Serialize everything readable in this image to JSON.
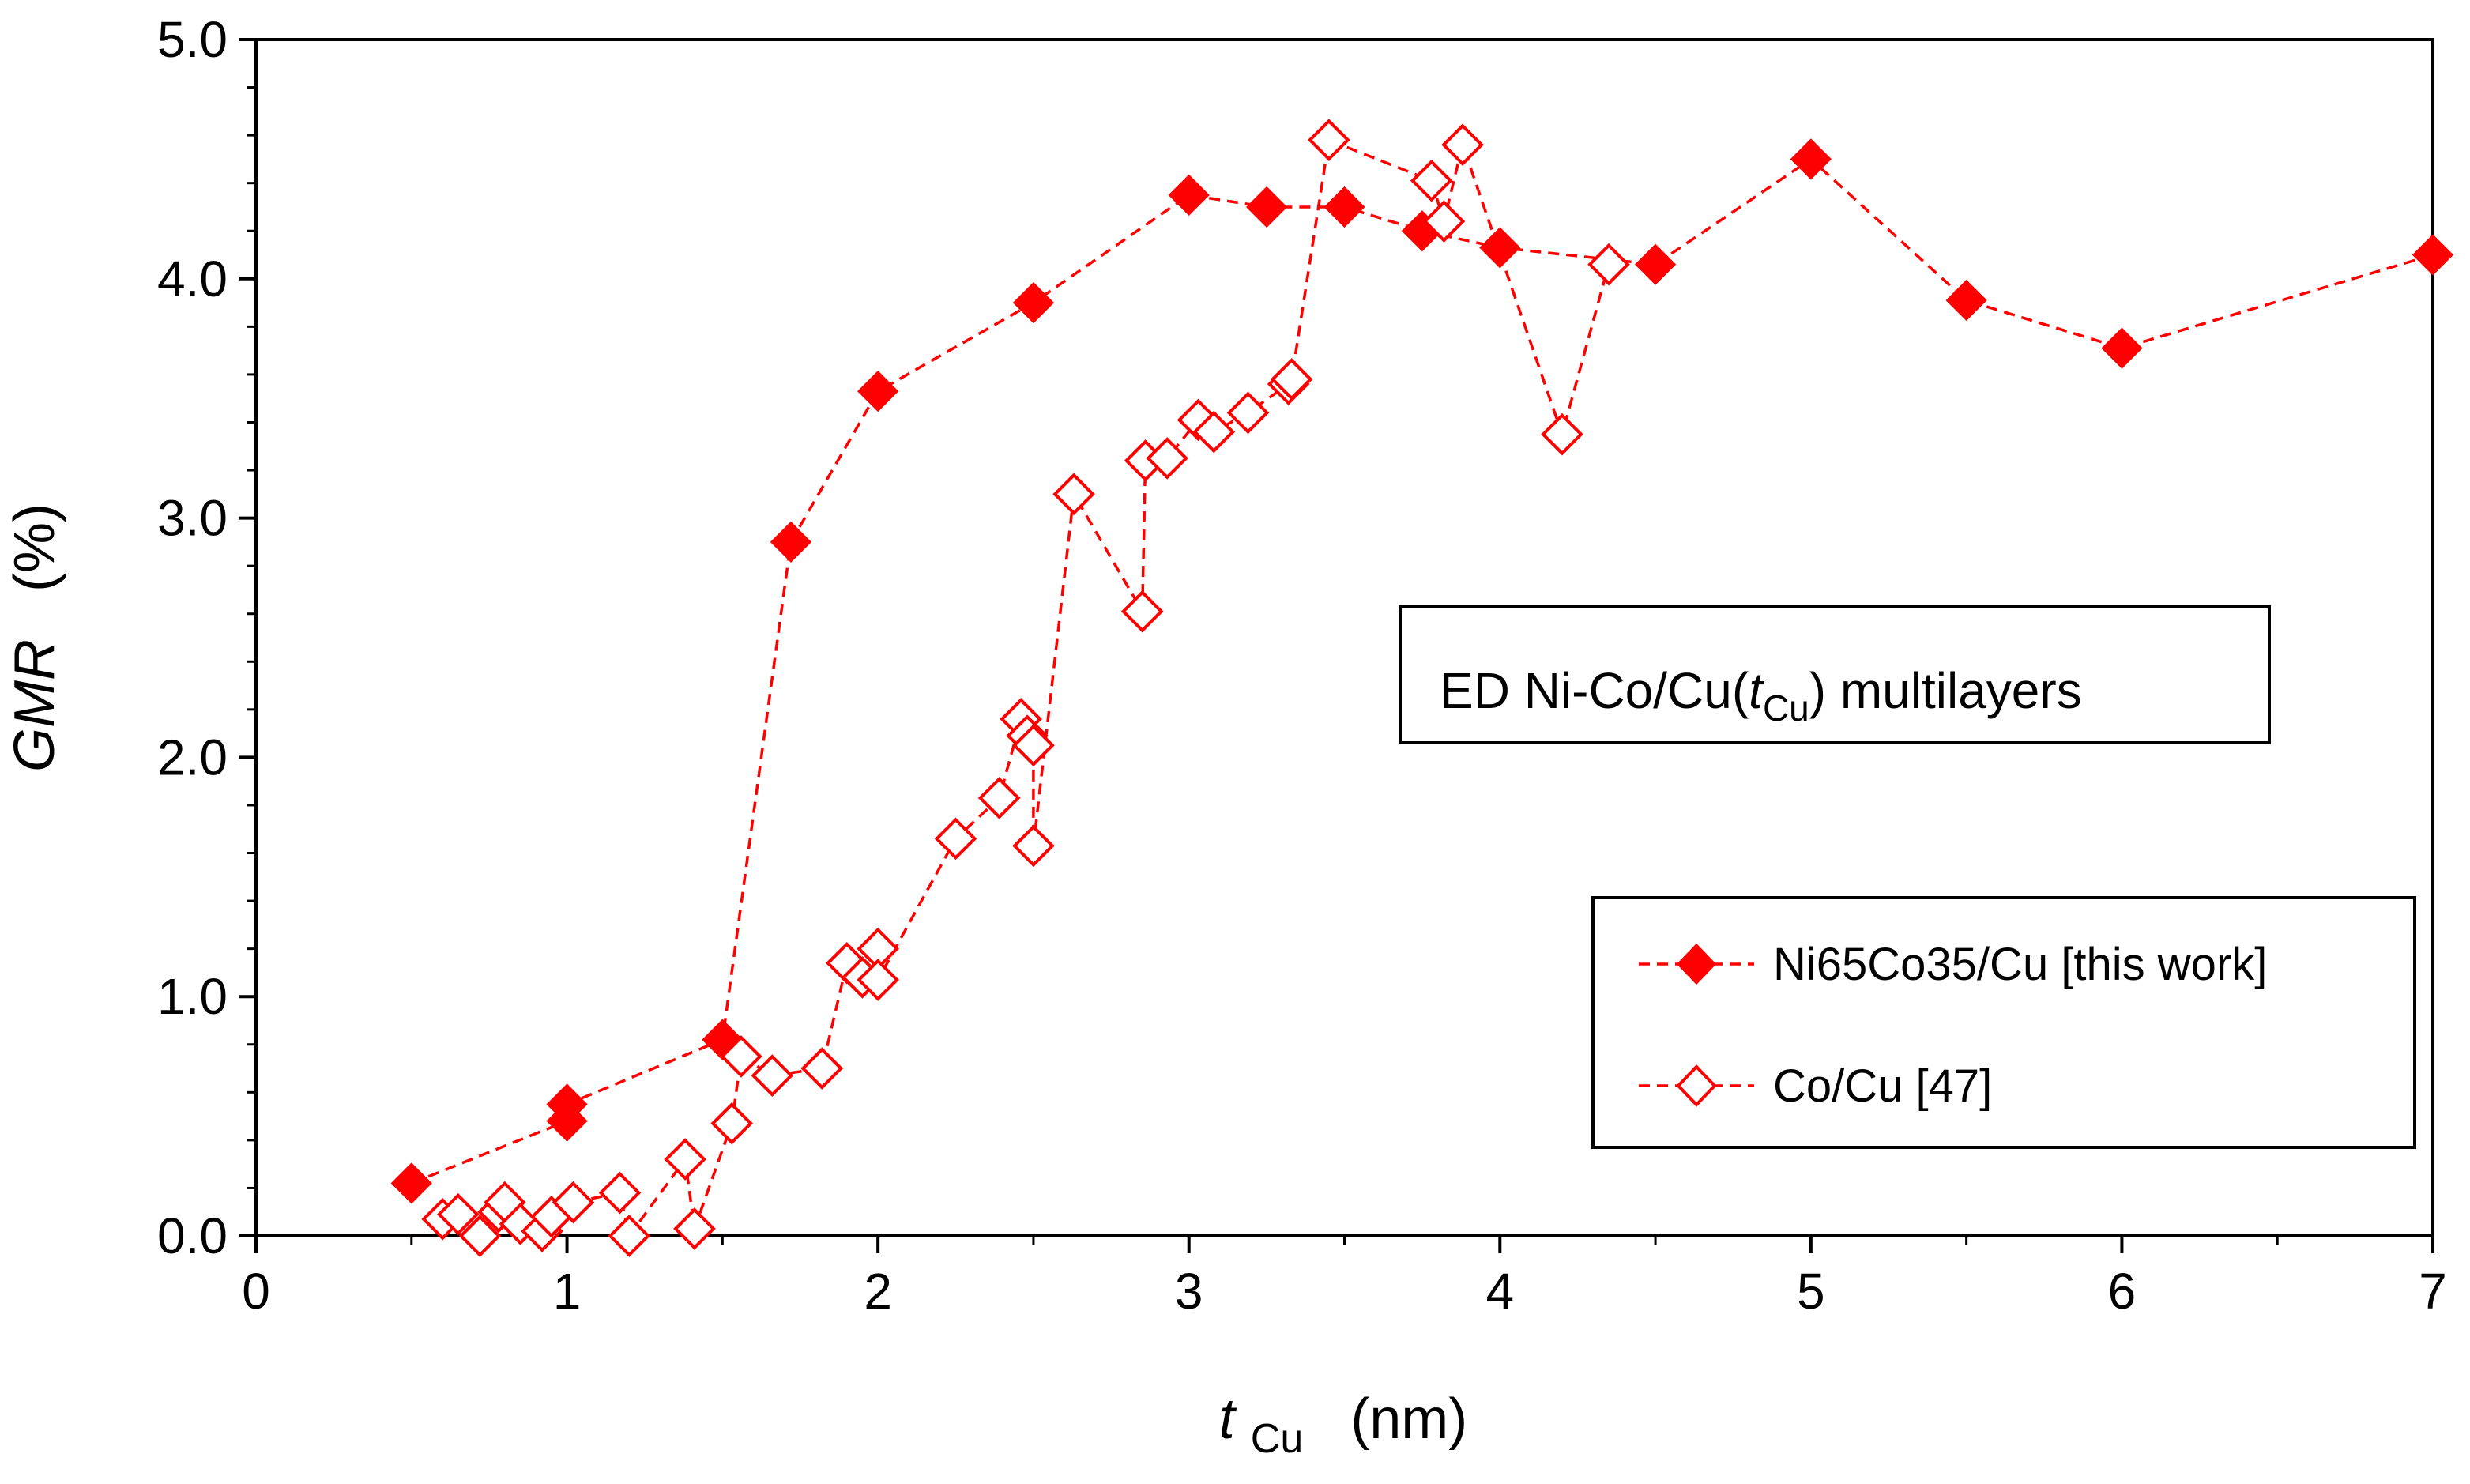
{
  "chart_data": {
    "type": "scatter",
    "title": "",
    "xlabel": {
      "main": "t",
      "sub": "Cu",
      "unit": "(nm)"
    },
    "ylabel": {
      "main": "GMR",
      "unit": "(%)"
    },
    "xlim": [
      0,
      7
    ],
    "ylim": [
      0,
      5
    ],
    "x_ticks": [
      "0",
      "1",
      "2",
      "3",
      "4",
      "5",
      "6",
      "7"
    ],
    "y_ticks": [
      "0.0",
      "1.0",
      "2.0",
      "3.0",
      "4.0",
      "5.0"
    ],
    "grid": false,
    "annotation": {
      "prefix": "ED Ni-Co/Cu(",
      "italic": "t",
      "sub": "Cu",
      "suffix": ") multilayers"
    },
    "legend": {
      "position": "lower-right"
    },
    "series": [
      {
        "name": "Ni65Co35/Cu [this work]",
        "marker": "filled-diamond",
        "color": "#ff0000",
        "x": [
          0.5,
          1.0,
          1.0,
          1.5,
          1.72,
          2.0,
          2.5,
          3.0,
          3.25,
          3.5,
          3.75,
          4.0,
          4.5,
          5.0,
          5.5,
          6.0,
          7.0
        ],
        "y": [
          0.22,
          0.48,
          0.55,
          0.82,
          2.9,
          3.53,
          3.9,
          4.35,
          4.3,
          4.3,
          4.2,
          4.13,
          4.06,
          4.5,
          3.91,
          3.71,
          4.1
        ]
      },
      {
        "name": "Co/Cu [47]",
        "marker": "open-diamond",
        "color": "#ff0000",
        "x": [
          0.6,
          0.65,
          0.72,
          0.78,
          0.8,
          0.85,
          0.92,
          0.95,
          1.02,
          1.17,
          1.2,
          1.38,
          1.41,
          1.53,
          1.56,
          1.66,
          1.82,
          1.9,
          1.95,
          2.0,
          2.0,
          2.25,
          2.39,
          2.46,
          2.48,
          2.5,
          2.5,
          2.63,
          2.85,
          2.86,
          2.93,
          3.03,
          3.08,
          3.19,
          3.32,
          3.33,
          3.45,
          3.78,
          3.82,
          3.88,
          4.2,
          4.35
        ],
        "y": [
          0.07,
          0.09,
          0.0,
          0.1,
          0.14,
          0.05,
          0.02,
          0.08,
          0.14,
          0.18,
          0.0,
          0.32,
          0.03,
          0.47,
          0.75,
          0.67,
          0.7,
          1.14,
          1.08,
          1.2,
          1.07,
          1.66,
          1.83,
          2.16,
          2.09,
          2.05,
          1.63,
          3.1,
          2.61,
          3.24,
          3.25,
          3.41,
          3.36,
          3.44,
          3.56,
          3.58,
          4.58,
          4.41,
          4.24,
          4.56,
          3.35,
          4.06
        ]
      }
    ]
  }
}
